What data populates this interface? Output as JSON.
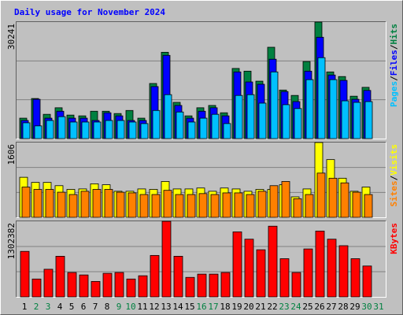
{
  "chart_data": [
    {
      "type": "bar",
      "title": "Daily usage for November 2024",
      "ylim": [
        0,
        30241
      ],
      "yticks": [
        30241
      ],
      "grid_lines": 2,
      "legend_separator": "/",
      "series": [
        {
          "name": "Hits",
          "color": "#008040",
          "values": [
            5300,
            10400,
            6300,
            8000,
            6100,
            5900,
            7100,
            7100,
            6500,
            7300,
            5300,
            14300,
            22400,
            9400,
            5900,
            8000,
            8600,
            6700,
            18200,
            17500,
            14900,
            23700,
            12600,
            11200,
            20000,
            30241,
            17300,
            16100,
            11000,
            13300,
            null
          ]
        },
        {
          "name": "Files",
          "color": "#0000ff",
          "values": [
            4700,
            10200,
            5300,
            7100,
            5300,
            5300,
            4700,
            6700,
            5900,
            4700,
            4700,
            13500,
            21600,
            8600,
            5300,
            7100,
            8000,
            5900,
            17300,
            14700,
            14100,
            20600,
            12200,
            9600,
            17500,
            26300,
            16500,
            15100,
            10200,
            12500,
            null
          ]
        },
        {
          "name": "Pages",
          "color": "#00c0ff",
          "values": [
            4100,
            3300,
            4700,
            5700,
            4300,
            4300,
            4300,
            4700,
            4700,
            4300,
            3900,
            7300,
            11400,
            6900,
            4300,
            5300,
            6300,
            3900,
            11200,
            11400,
            9200,
            17300,
            8800,
            7800,
            15300,
            21000,
            15300,
            9800,
            9400,
            9600,
            null
          ]
        }
      ]
    },
    {
      "type": "bar",
      "ylim": [
        0,
        1606
      ],
      "yticks": [
        1606
      ],
      "grid_lines": 2,
      "legend_separator": "/",
      "series": [
        {
          "name": "Visits",
          "color": "#ffff00",
          "values": [
            860,
            750,
            750,
            680,
            600,
            610,
            720,
            700,
            560,
            560,
            610,
            600,
            770,
            610,
            610,
            630,
            560,
            630,
            610,
            560,
            600,
            600,
            700,
            440,
            610,
            1606,
            1240,
            840,
            560,
            650,
            null
          ]
        },
        {
          "name": "Sites",
          "color": "#ff8000",
          "values": [
            650,
            600,
            600,
            540,
            490,
            560,
            600,
            600,
            540,
            525,
            490,
            490,
            580,
            490,
            490,
            510,
            490,
            525,
            525,
            490,
            560,
            680,
            770,
            400,
            490,
            950,
            840,
            740,
            540,
            490,
            null
          ]
        }
      ]
    },
    {
      "type": "bar",
      "ylim": [
        0,
        1302382
      ],
      "yticks": [
        1302382
      ],
      "grid_lines": 2,
      "series": [
        {
          "name": "KBytes",
          "color": "#ff0000",
          "values": [
            784000,
            308000,
            476000,
            700000,
            420000,
            378000,
            266000,
            406000,
            420000,
            308000,
            364000,
            714000,
            1302382,
            700000,
            336000,
            392000,
            392000,
            420000,
            1120000,
            994000,
            812000,
            1218000,
            658000,
            420000,
            826000,
            1134000,
            994000,
            882000,
            658000,
            532000,
            null
          ]
        }
      ],
      "categories": [
        "1",
        "2",
        "3",
        "4",
        "5",
        "6",
        "7",
        "8",
        "9",
        "10",
        "11",
        "12",
        "13",
        "14",
        "15",
        "16",
        "17",
        "18",
        "19",
        "20",
        "21",
        "22",
        "23",
        "24",
        "25",
        "26",
        "27",
        "28",
        "29",
        "30",
        "31"
      ],
      "category_colors": [
        "#000000",
        "#008040",
        "#008040",
        "#000000",
        "#000000",
        "#000000",
        "#000000",
        "#000000",
        "#008040",
        "#008040",
        "#000000",
        "#000000",
        "#000000",
        "#000000",
        "#000000",
        "#008040",
        "#008040",
        "#000000",
        "#000000",
        "#000000",
        "#000000",
        "#000000",
        "#008040",
        "#008040",
        "#000000",
        "#000000",
        "#000000",
        "#000000",
        "#000000",
        "#008040",
        "#008040"
      ]
    }
  ]
}
